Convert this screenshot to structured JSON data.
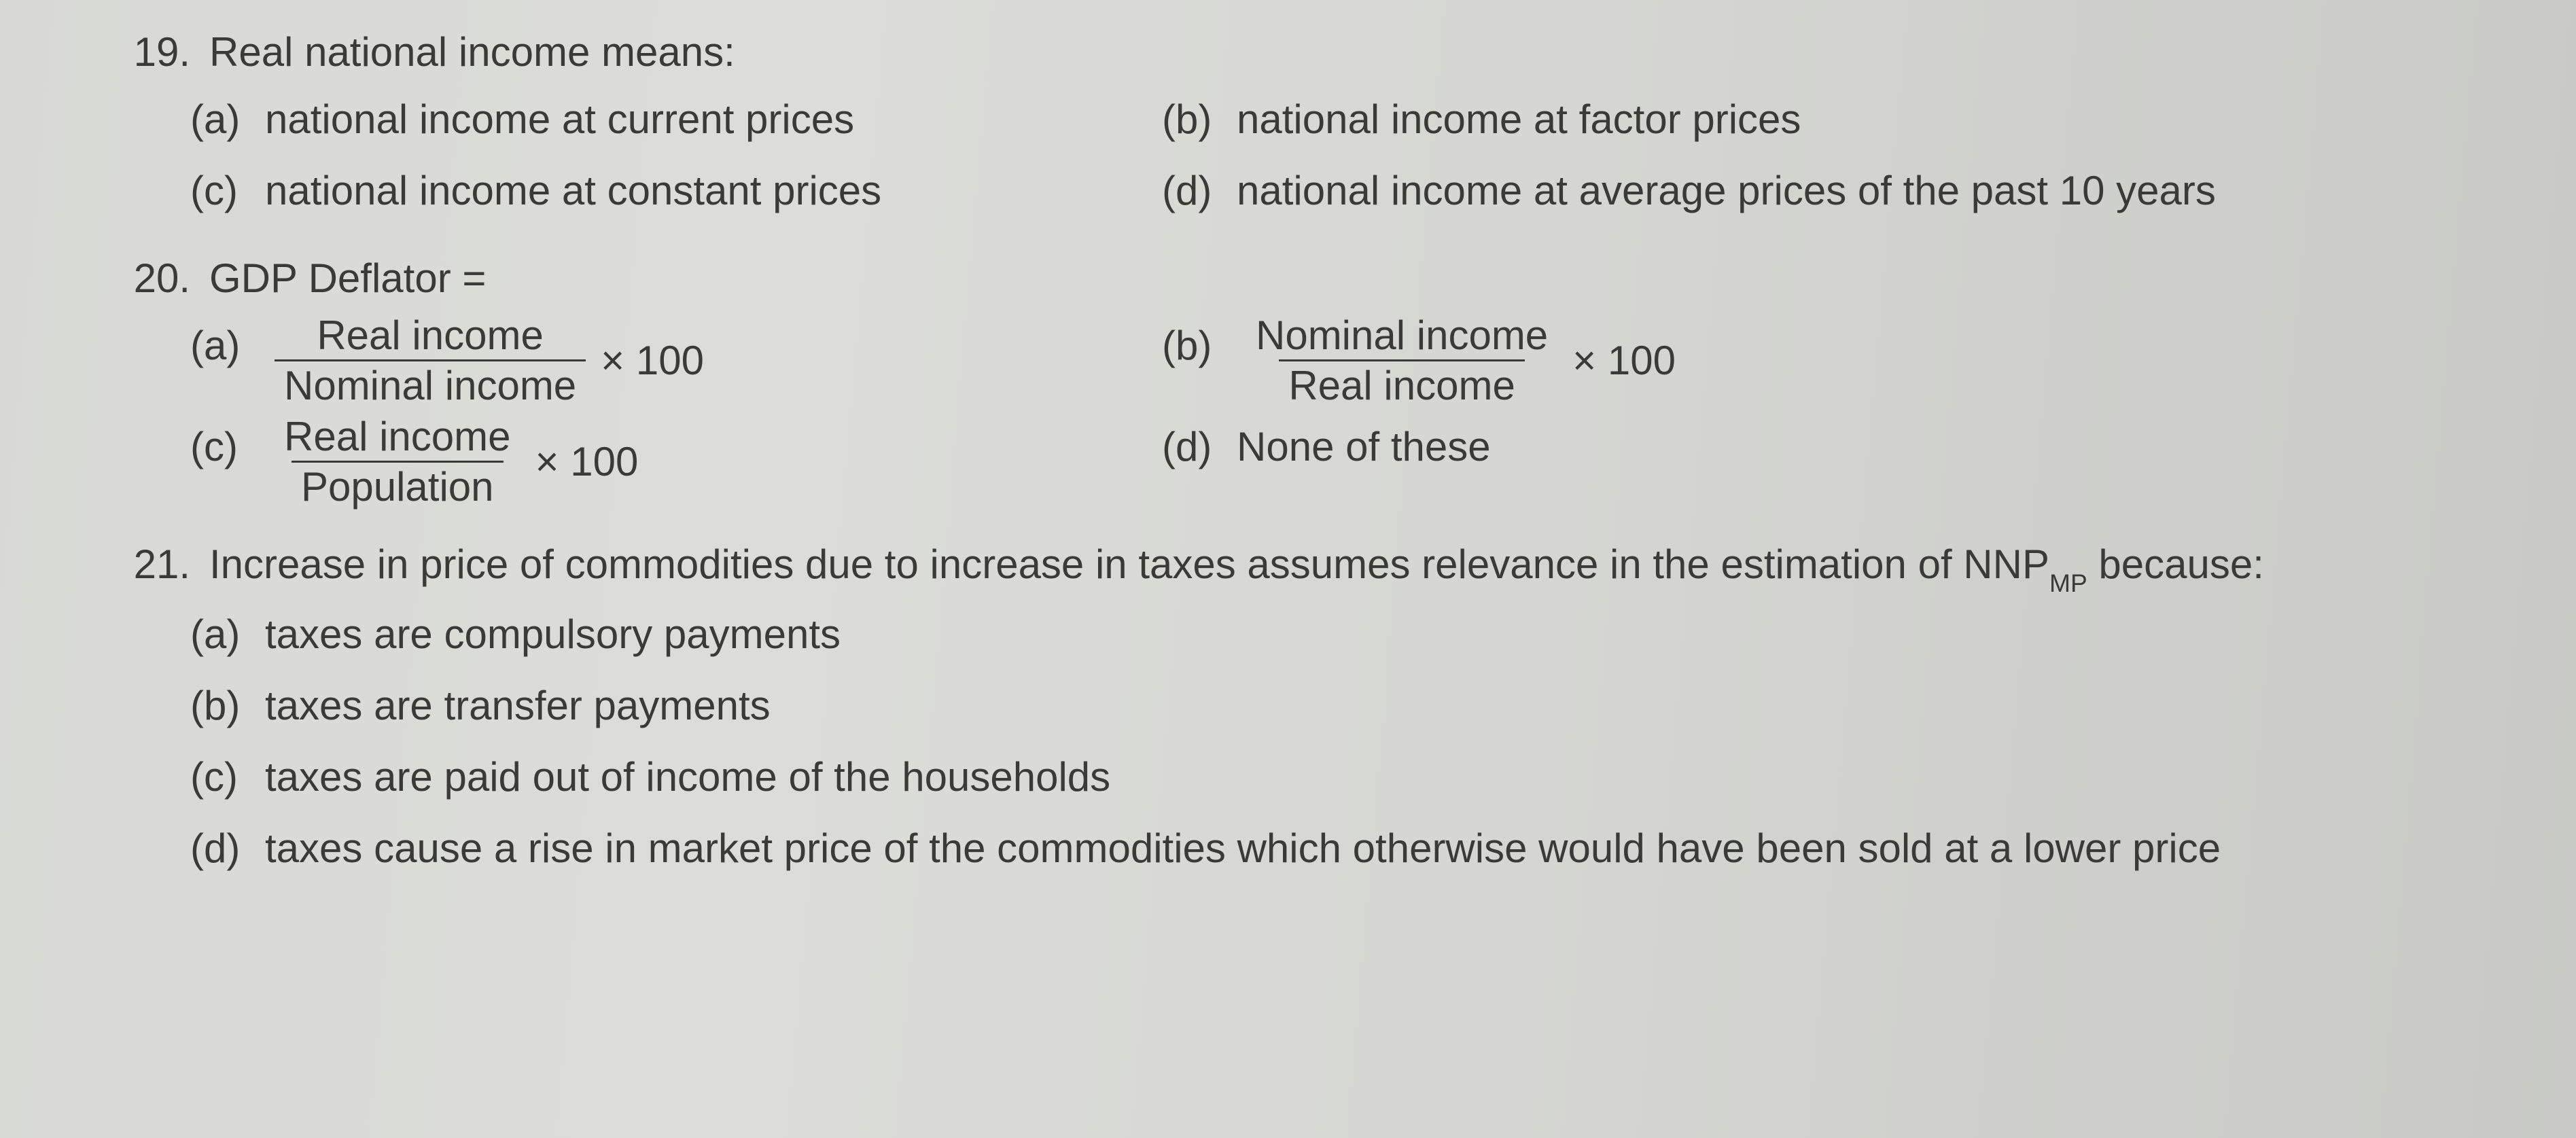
{
  "q19": {
    "number": "19.",
    "stem": "Real national income means:",
    "a": {
      "letter": "(a)",
      "text": "national income at current prices"
    },
    "b": {
      "letter": "(b)",
      "text": "national income at factor prices"
    },
    "c": {
      "letter": "(c)",
      "text": "national income at constant prices"
    },
    "d": {
      "letter": "(d)",
      "text": "national income at average prices of the past 10 years"
    }
  },
  "q20": {
    "number": "20.",
    "stem": "GDP Deflator =",
    "a": {
      "letter": "(a)",
      "num": "Real income",
      "den": "Nominal income",
      "tail": "× 100"
    },
    "b": {
      "letter": "(b)",
      "num": "Nominal income",
      "den": "Real income",
      "tail": "× 100"
    },
    "c": {
      "letter": "(c)",
      "num": "Real income",
      "den": "Population",
      "tail": "× 100"
    },
    "d": {
      "letter": "(d)",
      "text": "None of these"
    }
  },
  "q21": {
    "number": "21.",
    "stem_pre": "Increase in price of commodities due to increase in taxes assumes relevance in the estimation of NNP",
    "stem_sub": "MP",
    "stem_post": " because:",
    "a": {
      "letter": "(a)",
      "text": "taxes are compulsory payments"
    },
    "b": {
      "letter": "(b)",
      "text": "taxes are transfer payments"
    },
    "c": {
      "letter": "(c)",
      "text": "taxes are paid out of income of the households"
    },
    "d": {
      "letter": "(d)",
      "text": "taxes cause a rise in market price of the commodities which otherwise would have been sold at a lower price"
    }
  }
}
